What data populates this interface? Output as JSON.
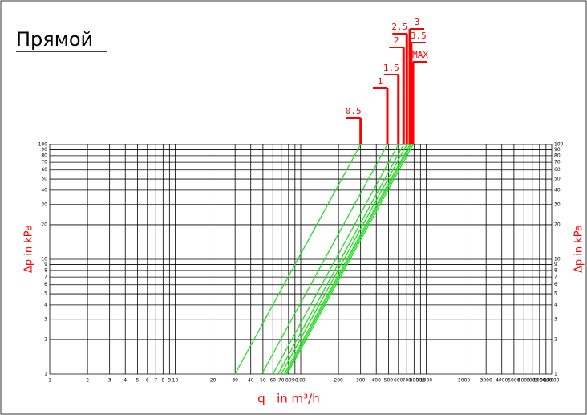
{
  "chart_data": {
    "type": "line",
    "title": "Прямой",
    "x_label": "q   in m³/h",
    "y_label": "Δp in kPa",
    "xlog": true,
    "ylog": true,
    "grid": true,
    "xlim": [
      1,
      10000
    ],
    "ylim": [
      1,
      100
    ],
    "xticks": [
      1,
      2,
      3,
      4,
      5,
      6,
      7,
      8,
      9,
      10,
      20,
      30,
      40,
      50,
      60,
      70,
      80,
      90,
      100,
      200,
      300,
      400,
      500,
      600,
      700,
      800,
      900,
      1000,
      2000,
      3000,
      4000,
      5000,
      6000,
      7000,
      8000,
      9000,
      10000
    ],
    "yticks": [
      1,
      2,
      3,
      4,
      5,
      6,
      7,
      8,
      9,
      10,
      20,
      30,
      40,
      50,
      60,
      70,
      80,
      90,
      100
    ],
    "marker_color": "#ff0000",
    "series": [
      {
        "name": "0.5",
        "color": "#22dd22",
        "x": [
          30,
          300
        ],
        "y": [
          1,
          100
        ]
      },
      {
        "name": "1",
        "color": "#22dd22",
        "x": [
          49,
          490
        ],
        "y": [
          1,
          100
        ]
      },
      {
        "name": "1.5",
        "color": "#22dd22",
        "x": [
          60,
          600
        ],
        "y": [
          1,
          100
        ]
      },
      {
        "name": "2",
        "color": "#22dd22",
        "x": [
          66,
          660
        ],
        "y": [
          1,
          100
        ]
      },
      {
        "name": "2.5",
        "color": "#22dd22",
        "x": [
          70,
          700
        ],
        "y": [
          1,
          100
        ]
      },
      {
        "name": "3",
        "color": "#22dd22",
        "x": [
          74,
          740
        ],
        "y": [
          1,
          100
        ]
      },
      {
        "name": "3.5",
        "color": "#22dd22",
        "x": [
          76,
          760
        ],
        "y": [
          1,
          100
        ]
      },
      {
        "name": "MAX",
        "color": "#22dd22",
        "x": [
          78,
          785
        ],
        "y": [
          1,
          100
        ]
      }
    ]
  }
}
